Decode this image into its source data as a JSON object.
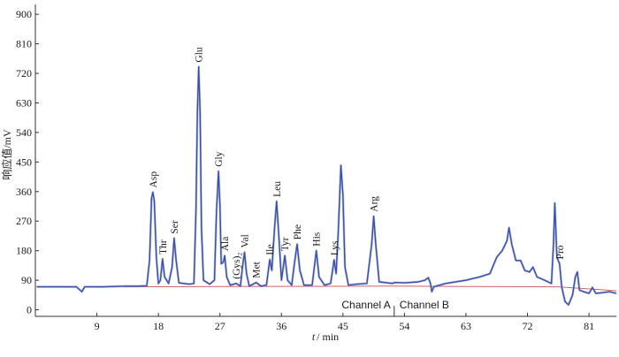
{
  "chart_data": {
    "type": "line",
    "title": "",
    "ylabel": "响应值/mV",
    "xlabel_italic": "t",
    "xlabel_rest": "/ min",
    "xlim": [
      0,
      85
    ],
    "ylim": [
      -20,
      930
    ],
    "x_ticks": [
      9,
      18,
      27,
      36,
      45,
      54,
      63,
      72,
      81
    ],
    "y_ticks": [
      0,
      90,
      180,
      270,
      360,
      450,
      540,
      630,
      720,
      810,
      900
    ],
    "grid": false,
    "legend": "none",
    "colors": {
      "trace": "#3a4fa8",
      "trace_light": "#8f9fd8",
      "baseline": "#c23b3b",
      "axis": "#333333"
    },
    "channel_divider": {
      "x": 52.5,
      "left_label": "Channel A",
      "right_label": "Channel B"
    },
    "peaks": [
      {
        "name": "Asp",
        "x": 17.2,
        "y": 358
      },
      {
        "name": "Thr",
        "x": 18.6,
        "y": 155
      },
      {
        "name": "Ser",
        "x": 20.3,
        "y": 218
      },
      {
        "name": "Glu",
        "x": 23.9,
        "y": 740
      },
      {
        "name": "Gly",
        "x": 26.8,
        "y": 422
      },
      {
        "name": "Ala",
        "x": 27.7,
        "y": 165
      },
      {
        "name": "(Gys)₂",
        "x": 29.4,
        "y": 80
      },
      {
        "name": "Val",
        "x": 30.6,
        "y": 175
      },
      {
        "name": "Met",
        "x": 32.3,
        "y": 83
      },
      {
        "name": "Ile",
        "x": 34.3,
        "y": 153
      },
      {
        "name": "Leu",
        "x": 35.3,
        "y": 330
      },
      {
        "name": "Tyr",
        "x": 36.5,
        "y": 165
      },
      {
        "name": "Phe",
        "x": 38.3,
        "y": 200
      },
      {
        "name": "His",
        "x": 41.1,
        "y": 180
      },
      {
        "name": "Lys",
        "x": 43.7,
        "y": 152
      },
      {
        "name": "",
        "x": 44.7,
        "y": 440
      },
      {
        "name": "Arg",
        "x": 49.5,
        "y": 285
      },
      {
        "name": "",
        "x": 57.5,
        "y": 98
      },
      {
        "name": "",
        "x": 69.3,
        "y": 250
      },
      {
        "name": "",
        "x": 72.8,
        "y": 130
      },
      {
        "name": "",
        "x": 76.0,
        "y": 325
      },
      {
        "name": "Pro",
        "x": 76.7,
        "y": 140
      },
      {
        "name": "",
        "x": 79.3,
        "y": 115
      },
      {
        "name": "",
        "x": 81.5,
        "y": 68
      },
      {
        "name": "",
        "x": 84.0,
        "y": 55
      }
    ],
    "trace_points": [
      [
        0.2,
        70
      ],
      [
        3,
        70
      ],
      [
        6,
        70
      ],
      [
        6.8,
        55
      ],
      [
        7.2,
        70
      ],
      [
        10,
        70
      ],
      [
        13,
        72
      ],
      [
        15,
        72
      ],
      [
        16.3,
        73
      ],
      [
        16.7,
        150
      ],
      [
        17.0,
        340
      ],
      [
        17.2,
        358
      ],
      [
        17.4,
        330
      ],
      [
        17.7,
        160
      ],
      [
        18.0,
        80
      ],
      [
        18.3,
        90
      ],
      [
        18.6,
        155
      ],
      [
        18.9,
        100
      ],
      [
        19.5,
        80
      ],
      [
        20.0,
        130
      ],
      [
        20.3,
        218
      ],
      [
        20.6,
        150
      ],
      [
        21.0,
        82
      ],
      [
        22.5,
        78
      ],
      [
        23.2,
        80
      ],
      [
        23.5,
        300
      ],
      [
        23.7,
        600
      ],
      [
        23.9,
        740
      ],
      [
        24.1,
        600
      ],
      [
        24.3,
        250
      ],
      [
        24.6,
        90
      ],
      [
        25.5,
        78
      ],
      [
        26.2,
        90
      ],
      [
        26.5,
        300
      ],
      [
        26.8,
        422
      ],
      [
        27.0,
        320
      ],
      [
        27.2,
        140
      ],
      [
        27.5,
        145
      ],
      [
        27.7,
        165
      ],
      [
        28.0,
        100
      ],
      [
        28.5,
        75
      ],
      [
        29.4,
        80
      ],
      [
        30.0,
        72
      ],
      [
        30.3,
        130
      ],
      [
        30.6,
        175
      ],
      [
        30.9,
        110
      ],
      [
        31.3,
        72
      ],
      [
        32.3,
        83
      ],
      [
        33.0,
        72
      ],
      [
        33.8,
        75
      ],
      [
        34.3,
        153
      ],
      [
        34.6,
        120
      ],
      [
        35.0,
        250
      ],
      [
        35.3,
        330
      ],
      [
        35.6,
        230
      ],
      [
        36.0,
        90
      ],
      [
        36.5,
        165
      ],
      [
        36.9,
        90
      ],
      [
        37.5,
        75
      ],
      [
        37.9,
        140
      ],
      [
        38.3,
        200
      ],
      [
        38.7,
        120
      ],
      [
        39.3,
        75
      ],
      [
        40.5,
        75
      ],
      [
        41.1,
        180
      ],
      [
        41.5,
        100
      ],
      [
        42.3,
        75
      ],
      [
        43.2,
        80
      ],
      [
        43.7,
        152
      ],
      [
        44.0,
        110
      ],
      [
        44.3,
        230
      ],
      [
        44.7,
        440
      ],
      [
        45.0,
        350
      ],
      [
        45.3,
        130
      ],
      [
        45.8,
        75
      ],
      [
        47,
        78
      ],
      [
        48.5,
        80
      ],
      [
        49.2,
        200
      ],
      [
        49.5,
        285
      ],
      [
        49.8,
        200
      ],
      [
        50.3,
        85
      ],
      [
        51.5,
        82
      ],
      [
        52.3,
        80
      ],
      [
        52.5,
        83
      ],
      [
        54,
        82
      ],
      [
        56,
        85
      ],
      [
        57.0,
        90
      ],
      [
        57.5,
        98
      ],
      [
        57.8,
        80
      ],
      [
        58.0,
        55
      ],
      [
        58.3,
        70
      ],
      [
        60,
        80
      ],
      [
        63,
        90
      ],
      [
        65,
        100
      ],
      [
        66.5,
        110
      ],
      [
        67.5,
        160
      ],
      [
        68.3,
        180
      ],
      [
        69.0,
        210
      ],
      [
        69.3,
        250
      ],
      [
        69.7,
        200
      ],
      [
        70.3,
        150
      ],
      [
        71.0,
        150
      ],
      [
        71.6,
        120
      ],
      [
        72.3,
        115
      ],
      [
        72.8,
        130
      ],
      [
        73.4,
        100
      ],
      [
        74.5,
        90
      ],
      [
        75.5,
        80
      ],
      [
        75.8,
        200
      ],
      [
        76.0,
        325
      ],
      [
        76.3,
        160
      ],
      [
        76.7,
        140
      ],
      [
        77.0,
        70
      ],
      [
        77.5,
        25
      ],
      [
        78.0,
        15
      ],
      [
        78.6,
        45
      ],
      [
        79.0,
        100
      ],
      [
        79.3,
        115
      ],
      [
        79.6,
        60
      ],
      [
        80.2,
        55
      ],
      [
        81.0,
        50
      ],
      [
        81.5,
        68
      ],
      [
        82.0,
        50
      ],
      [
        83.0,
        52
      ],
      [
        84.0,
        55
      ],
      [
        85,
        50
      ]
    ],
    "baseline_points": [
      [
        13,
        70
      ],
      [
        52,
        72
      ],
      [
        76.5,
        70
      ],
      [
        85,
        58
      ]
    ]
  }
}
